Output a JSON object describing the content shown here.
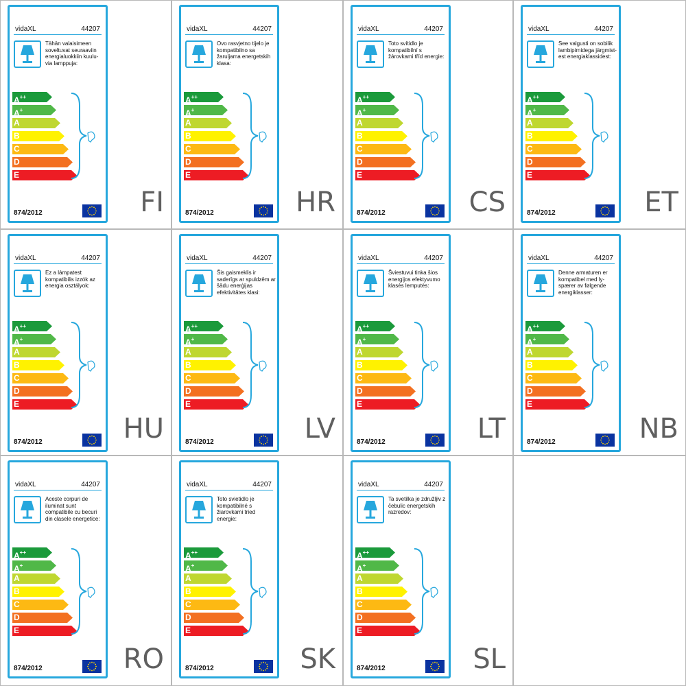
{
  "brand": "vidaXL",
  "code": "44207",
  "regulation": "874/2012",
  "icons": {
    "lamp": "lamp-icon",
    "bulb": "bulb-icon",
    "flag": "eu-flag-icon"
  },
  "classes": [
    {
      "letter": "A",
      "sup": "++",
      "color": "#1b9a3b"
    },
    {
      "letter": "A",
      "sup": "+",
      "color": "#50b848"
    },
    {
      "letter": "A",
      "sup": "",
      "color": "#bfd730"
    },
    {
      "letter": "B",
      "sup": "",
      "color": "#fff200"
    },
    {
      "letter": "C",
      "sup": "",
      "color": "#fdb913"
    },
    {
      "letter": "D",
      "sup": "",
      "color": "#f37021"
    },
    {
      "letter": "E",
      "sup": "",
      "color": "#ed1c24"
    }
  ],
  "labels": [
    {
      "lang": "FI",
      "text": "Tähän valaisimeen soveltuvat seuraaviin energialuokkiin kuulu-via lamppuja:"
    },
    {
      "lang": "HR",
      "text": "Ovo rasvjetno tijelo je kompatibilno sa žaruljama energetskih klasa:"
    },
    {
      "lang": "CS",
      "text": "Toto svítidlo je kompatibilní s žárovkami tříd energie:"
    },
    {
      "lang": "ET",
      "text": "See valgusti on sobilik lambipirnidega järgmist-est energiaklassidest:"
    },
    {
      "lang": "HU",
      "text": "Ez a lámpatest kompatibilis izzók az energia osztályok:"
    },
    {
      "lang": "LV",
      "text": "Šis gaismeklis ir saderīgs ar spuldzēm ar šādu enerģijas efektivitātes klasi:"
    },
    {
      "lang": "LT",
      "text": "Šviestuvui tinka šios energijos efektyvumo klasės lemputės:"
    },
    {
      "lang": "NB",
      "text": "Denne armaturen er kompatibel med ly-spærer av følgende energiklasser:"
    },
    {
      "lang": "RO",
      "text": "Aceste corpuri de iluminat sunt compatibile cu becuri din clasele energetice:"
    },
    {
      "lang": "SK",
      "text": "Toto svietidlo je kompatibilné s žiarovkami tried energie:"
    },
    {
      "lang": "SL",
      "text": "Ta svetilka je združljiv z čebulic energetskih razredov:"
    }
  ]
}
